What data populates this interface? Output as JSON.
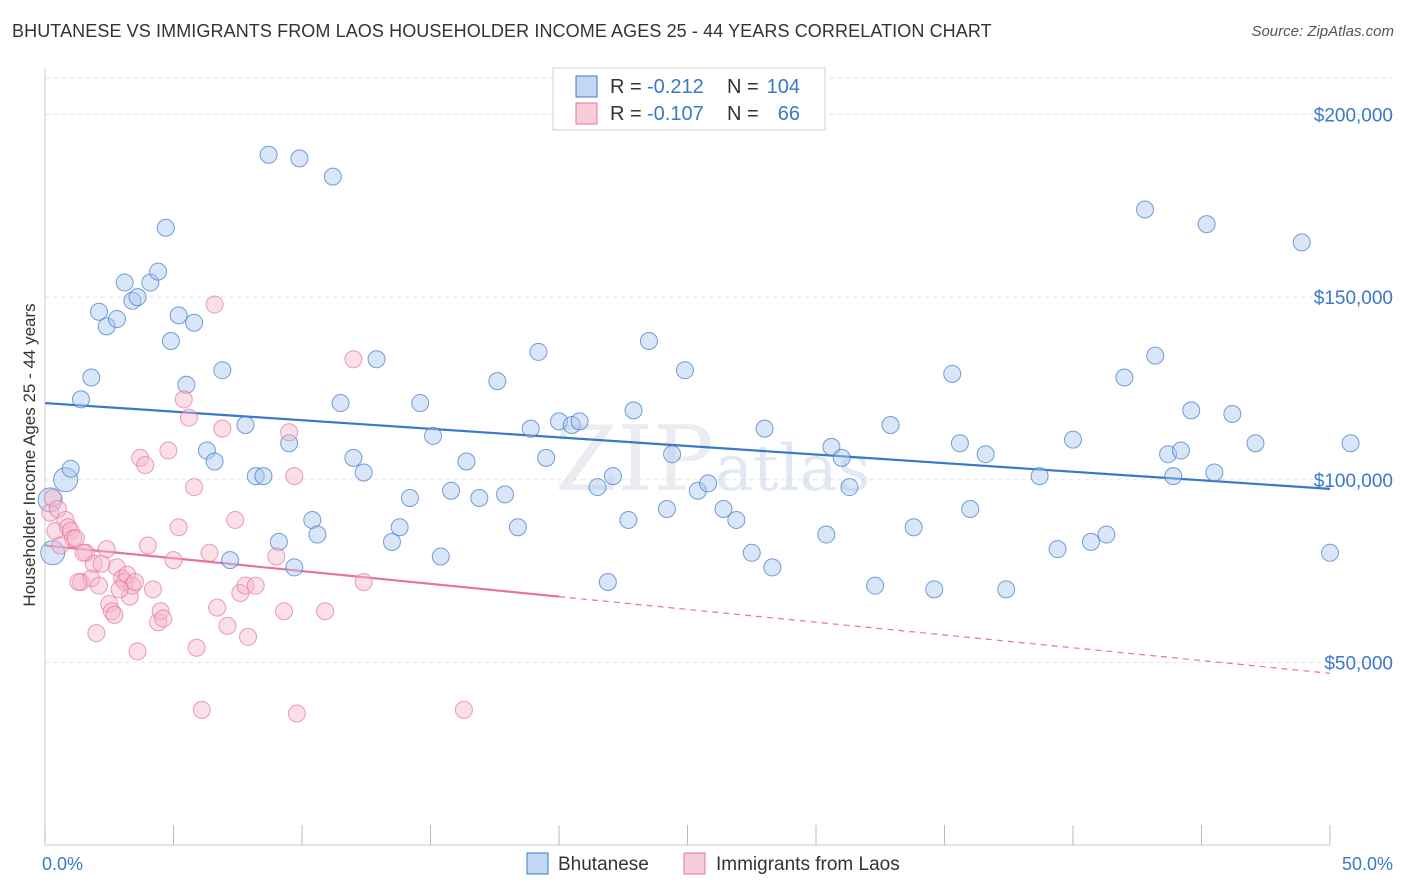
{
  "title": "BHUTANESE VS IMMIGRANTS FROM LAOS HOUSEHOLDER INCOME AGES 25 - 44 YEARS CORRELATION CHART",
  "source": "Source: ZipAtlas.com",
  "watermark": {
    "zip": "ZIP",
    "atlas": "atlas"
  },
  "legend": {
    "r_label": "R =",
    "n_label": "N =",
    "rows": [
      {
        "r": "-0.212",
        "n": "104",
        "color": "#a8c8f0"
      },
      {
        "r": "-0.107",
        "n": "66",
        "color": "#f5b8cc"
      }
    ]
  },
  "chart_data": {
    "type": "scatter",
    "title": "BHUTANESE VS IMMIGRANTS FROM LAOS HOUSEHOLDER INCOME AGES 25 - 44 YEARS CORRELATION CHART",
    "ylabel": "Householder Income Ages 25 - 44 years",
    "xlabel": "",
    "xlim": [
      0,
      50
    ],
    "ylim": [
      0,
      210000
    ],
    "x_tick_labels": [
      "0.0%",
      "50.0%"
    ],
    "y_tick_labels": [
      "$50,000",
      "$100,000",
      "$150,000",
      "$200,000"
    ],
    "y_tick_values": [
      50000,
      100000,
      150000,
      200000
    ],
    "grid": true,
    "legend_position": "top-center",
    "series": [
      {
        "name": "Bhutanese",
        "color": "#3a78c9",
        "fill": "#a8c8f0",
        "trend": {
          "x": [
            0,
            50
          ],
          "y": [
            121000,
            97500
          ],
          "dashed_from": null
        },
        "points": [
          [
            0.2,
            94500
          ],
          [
            0.8,
            100000
          ],
          [
            1.0,
            103000
          ],
          [
            1.4,
            122000
          ],
          [
            1.8,
            128000
          ],
          [
            2.1,
            146000
          ],
          [
            2.4,
            142000
          ],
          [
            2.8,
            144000
          ],
          [
            3.1,
            154000
          ],
          [
            3.4,
            149000
          ],
          [
            3.6,
            150000
          ],
          [
            4.1,
            154000
          ],
          [
            4.4,
            157000
          ],
          [
            4.7,
            169000
          ],
          [
            4.9,
            138000
          ],
          [
            5.2,
            145000
          ],
          [
            5.5,
            126000
          ],
          [
            5.8,
            143000
          ],
          [
            6.3,
            108000
          ],
          [
            6.6,
            105000
          ],
          [
            6.9,
            130000
          ],
          [
            7.2,
            78000
          ],
          [
            7.8,
            115000
          ],
          [
            8.2,
            101000
          ],
          [
            8.5,
            101000
          ],
          [
            9.1,
            83000
          ],
          [
            9.5,
            110000
          ],
          [
            9.7,
            76000
          ],
          [
            10.4,
            89000
          ],
          [
            10.6,
            85000
          ],
          [
            11.2,
            183000
          ],
          [
            11.5,
            121000
          ],
          [
            12.0,
            106000
          ],
          [
            12.4,
            102000
          ],
          [
            12.9,
            133000
          ],
          [
            13.5,
            83000
          ],
          [
            13.8,
            87000
          ],
          [
            14.2,
            95000
          ],
          [
            14.6,
            121000
          ],
          [
            15.1,
            112000
          ],
          [
            15.4,
            79000
          ],
          [
            15.8,
            97000
          ],
          [
            16.4,
            105000
          ],
          [
            16.9,
            95000
          ],
          [
            17.6,
            127000
          ],
          [
            17.9,
            96000
          ],
          [
            18.4,
            87000
          ],
          [
            18.9,
            114000
          ],
          [
            19.2,
            135000
          ],
          [
            19.5,
            106000
          ],
          [
            20.0,
            116000
          ],
          [
            20.5,
            115000
          ],
          [
            20.8,
            116000
          ],
          [
            21.5,
            98000
          ],
          [
            21.9,
            72000
          ],
          [
            22.1,
            101000
          ],
          [
            22.7,
            89000
          ],
          [
            22.9,
            119000
          ],
          [
            23.5,
            138000
          ],
          [
            24.2,
            92000
          ],
          [
            24.4,
            107000
          ],
          [
            24.9,
            130000
          ],
          [
            25.4,
            97000
          ],
          [
            25.8,
            99000
          ],
          [
            26.4,
            92000
          ],
          [
            26.9,
            89000
          ],
          [
            27.5,
            80000
          ],
          [
            28.0,
            114000
          ],
          [
            28.3,
            76000
          ],
          [
            30.4,
            85000
          ],
          [
            30.6,
            109000
          ],
          [
            31.0,
            106000
          ],
          [
            31.3,
            98000
          ],
          [
            32.3,
            71000
          ],
          [
            32.9,
            115000
          ],
          [
            33.8,
            87000
          ],
          [
            34.6,
            70000
          ],
          [
            35.3,
            129000
          ],
          [
            35.6,
            110000
          ],
          [
            36.0,
            92000
          ],
          [
            36.6,
            107000
          ],
          [
            37.4,
            70000
          ],
          [
            38.7,
            101000
          ],
          [
            39.4,
            81000
          ],
          [
            40.0,
            111000
          ],
          [
            40.7,
            83000
          ],
          [
            41.3,
            85000
          ],
          [
            42.0,
            128000
          ],
          [
            42.8,
            174000
          ],
          [
            43.2,
            134000
          ],
          [
            43.7,
            107000
          ],
          [
            43.9,
            101000
          ],
          [
            44.2,
            108000
          ],
          [
            44.6,
            119000
          ],
          [
            45.2,
            170000
          ],
          [
            45.5,
            102000
          ],
          [
            46.2,
            118000
          ],
          [
            47.1,
            110000
          ],
          [
            48.9,
            165000
          ],
          [
            50.0,
            80000
          ],
          [
            50.8,
            110000
          ],
          [
            8.7,
            189000
          ],
          [
            9.9,
            188000
          ],
          [
            0.3,
            80000
          ]
        ]
      },
      {
        "name": "Immigrants from Laos",
        "color": "#e8749c",
        "fill": "#f5b8cc",
        "trend": {
          "x": [
            0,
            20,
            50
          ],
          "y": [
            82000,
            68000,
            47000
          ],
          "dashed_from": 20
        },
        "points": [
          [
            0.2,
            91000
          ],
          [
            0.3,
            95000
          ],
          [
            0.4,
            86000
          ],
          [
            0.5,
            92000
          ],
          [
            0.6,
            82000
          ],
          [
            0.8,
            89000
          ],
          [
            0.9,
            87000
          ],
          [
            1.0,
            86000
          ],
          [
            1.1,
            84000
          ],
          [
            1.2,
            84000
          ],
          [
            1.4,
            72000
          ],
          [
            1.6,
            80000
          ],
          [
            1.8,
            73000
          ],
          [
            1.9,
            77000
          ],
          [
            2.0,
            58000
          ],
          [
            2.1,
            71000
          ],
          [
            2.2,
            77000
          ],
          [
            2.4,
            81000
          ],
          [
            2.5,
            66000
          ],
          [
            2.6,
            64000
          ],
          [
            2.8,
            76000
          ],
          [
            3.0,
            73000
          ],
          [
            3.1,
            72000
          ],
          [
            3.2,
            74000
          ],
          [
            3.3,
            68000
          ],
          [
            3.4,
            71000
          ],
          [
            3.6,
            53000
          ],
          [
            3.7,
            106000
          ],
          [
            3.9,
            104000
          ],
          [
            4.0,
            82000
          ],
          [
            4.2,
            70000
          ],
          [
            4.4,
            61000
          ],
          [
            4.5,
            64000
          ],
          [
            4.8,
            108000
          ],
          [
            5.0,
            78000
          ],
          [
            5.2,
            87000
          ],
          [
            5.4,
            122000
          ],
          [
            5.6,
            117000
          ],
          [
            5.8,
            98000
          ],
          [
            5.9,
            54000
          ],
          [
            6.1,
            37000
          ],
          [
            6.4,
            80000
          ],
          [
            6.6,
            148000
          ],
          [
            6.7,
            65000
          ],
          [
            6.9,
            114000
          ],
          [
            7.1,
            60000
          ],
          [
            7.4,
            89000
          ],
          [
            7.6,
            69000
          ],
          [
            7.8,
            71000
          ],
          [
            7.9,
            57000
          ],
          [
            8.2,
            71000
          ],
          [
            9.0,
            79000
          ],
          [
            9.3,
            64000
          ],
          [
            9.5,
            113000
          ],
          [
            9.7,
            101000
          ],
          [
            9.8,
            36000
          ],
          [
            10.9,
            64000
          ],
          [
            12.0,
            133000
          ],
          [
            12.4,
            72000
          ],
          [
            16.3,
            37000
          ],
          [
            3.5,
            72000
          ],
          [
            2.7,
            63000
          ],
          [
            1.5,
            80000
          ],
          [
            4.6,
            62000
          ],
          [
            1.3,
            72000
          ],
          [
            2.9,
            70000
          ]
        ]
      }
    ]
  },
  "bottom_legend": [
    {
      "label": "Bhutanese",
      "color": "#a8c8f0",
      "stroke": "#3a78c9"
    },
    {
      "label": "Immigrants from Laos",
      "color": "#f5b8cc",
      "stroke": "#e8749c"
    }
  ]
}
